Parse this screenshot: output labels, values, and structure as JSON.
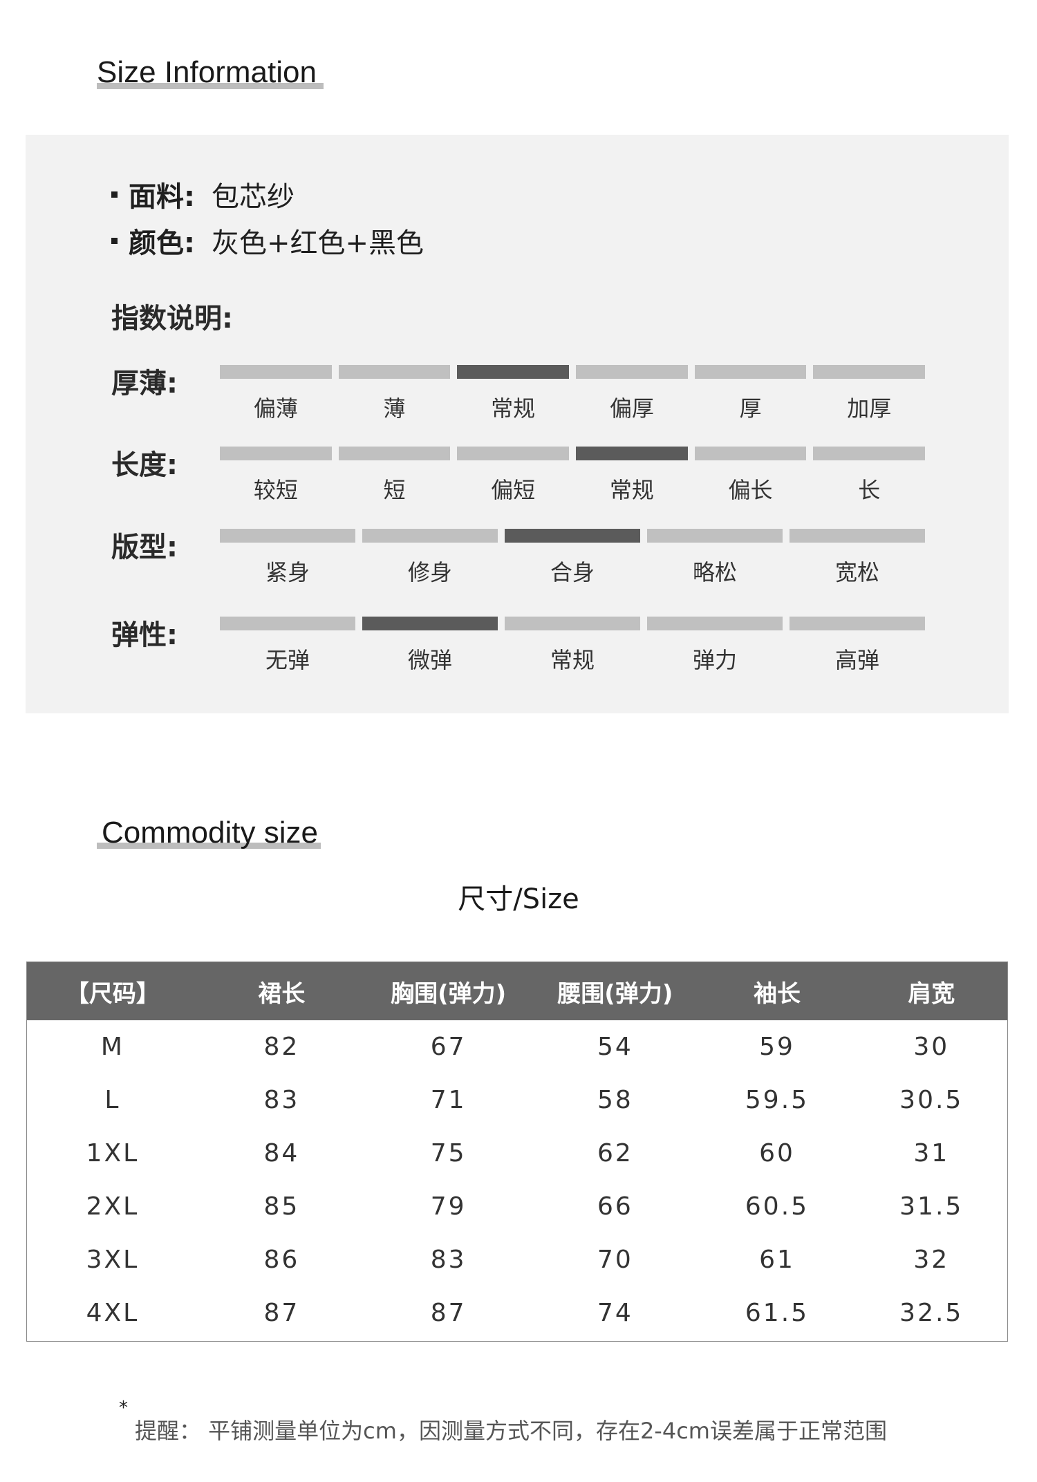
{
  "size_info": {
    "title": "Size Information",
    "fabric_label": "面料:",
    "fabric_value": "包芯纱",
    "color_label": "颜色:",
    "color_value": "灰色+红色+黑色",
    "index_title": "指数说明:",
    "scales": [
      {
        "label": "厚薄:",
        "options": [
          "偏薄",
          "薄",
          "常规",
          "偏厚",
          "厚",
          "加厚"
        ],
        "selected": 2
      },
      {
        "label": "长度:",
        "options": [
          "较短",
          "短",
          "偏短",
          "常规",
          "偏长",
          "长"
        ],
        "selected": 3
      },
      {
        "label": "版型:",
        "options": [
          "紧身",
          "修身",
          "合身",
          "略松",
          "宽松"
        ],
        "selected": 2
      },
      {
        "label": "弹性:",
        "options": [
          "无弹",
          "微弹",
          "常规",
          "弹力",
          "高弹"
        ],
        "selected": 1
      }
    ],
    "colors": {
      "bar": "#c0c0c0",
      "bar_selected": "#5b5b5b",
      "panel": "#f2f2f2"
    }
  },
  "commodity": {
    "title": "Commodity size",
    "subtitle": "尺寸/Size",
    "headers": [
      "【尺码】",
      "裙长",
      "胸围(弹力)",
      "腰围(弹力)",
      "袖长",
      "肩宽"
    ],
    "rows": [
      [
        "M",
        "82",
        "67",
        "54",
        "59",
        "30"
      ],
      [
        "L",
        "83",
        "71",
        "58",
        "59.5",
        "30.5"
      ],
      [
        "1XL",
        "84",
        "75",
        "62",
        "60",
        "31"
      ],
      [
        "2XL",
        "85",
        "79",
        "66",
        "60.5",
        "31.5"
      ],
      [
        "3XL",
        "86",
        "83",
        "70",
        "61",
        "32"
      ],
      [
        "4XL",
        "87",
        "87",
        "74",
        "61.5",
        "32.5"
      ]
    ],
    "header_color": "#666666"
  },
  "footer": {
    "star": "*",
    "note": "提醒：  平铺测量单位为cm，因测量方式不同，存在2-4cm误差属于正常范围"
  }
}
